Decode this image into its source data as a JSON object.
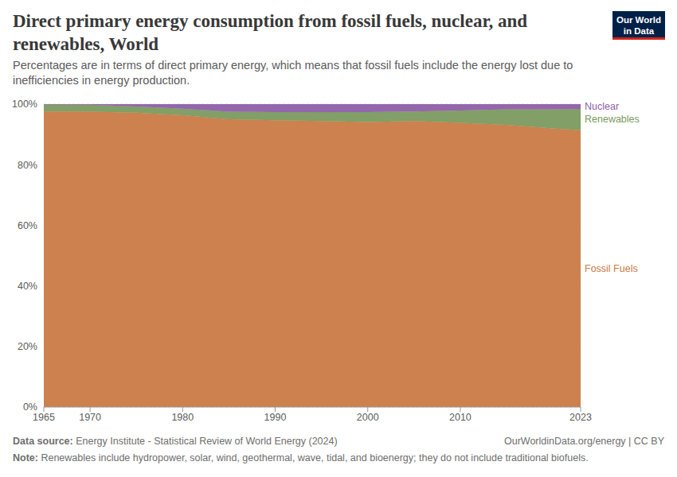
{
  "chart_data": {
    "type": "area",
    "stacked": true,
    "title": "Direct primary energy consumption from fossil fuels, nuclear, and renewables, World",
    "subtitle": "Percentages are in terms of direct primary energy, which means that fossil fuels include the energy lost due to inefficiencies in energy production.",
    "logo": "Our World in Data",
    "source_label": "Data source:",
    "source": "Energy Institute - Statistical Review of World Energy (2024)",
    "url": "OurWorldinData.org/energy | CC BY",
    "note_label": "Note:",
    "note": "Renewables include hydropower, solar, wind, geothermal, wave, tidal, and bioenergy; they do not include traditional biofuels.",
    "x": [
      1965,
      1970,
      1975,
      1980,
      1985,
      1990,
      1995,
      2000,
      2005,
      2010,
      2015,
      2020,
      2023
    ],
    "xlim": [
      1965,
      2023
    ],
    "xticks": [
      1965,
      1970,
      1980,
      1990,
      2000,
      2010,
      2023
    ],
    "ylim": [
      0,
      100
    ],
    "yticks": [
      {
        "value": 0,
        "label": "0%"
      },
      {
        "value": 20,
        "label": "20%"
      },
      {
        "value": 40,
        "label": "40%"
      },
      {
        "value": 60,
        "label": "60%"
      },
      {
        "value": 80,
        "label": "80%"
      },
      {
        "value": 100,
        "label": "100%"
      }
    ],
    "grid": true,
    "series": [
      {
        "name": "Fossil Fuels",
        "color": "#ca7a44",
        "values": [
          97.6,
          97.5,
          97.2,
          96.3,
          95.0,
          94.7,
          94.4,
          94.1,
          94.4,
          93.8,
          93.2,
          92.0,
          91.4
        ]
      },
      {
        "name": "Renewables",
        "color": "#7a9a5e",
        "values": [
          2.3,
          2.3,
          2.0,
          2.2,
          2.5,
          2.7,
          3.0,
          3.3,
          3.2,
          4.1,
          5.1,
          6.3,
          7.0
        ]
      },
      {
        "name": "Nuclear",
        "color": "#8e5fa8",
        "values": [
          0.1,
          0.2,
          0.8,
          1.5,
          2.5,
          2.6,
          2.6,
          2.6,
          2.4,
          2.1,
          1.7,
          1.7,
          1.6
        ]
      }
    ]
  }
}
